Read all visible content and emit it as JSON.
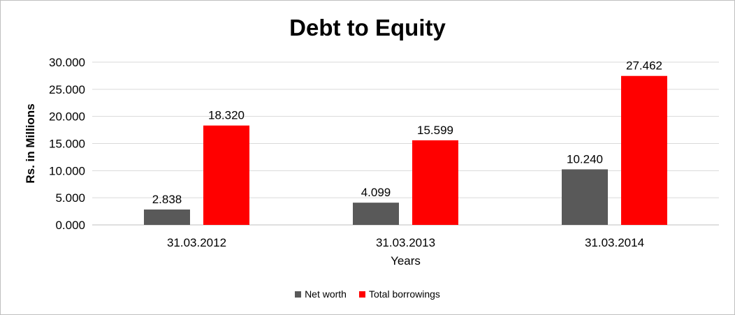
{
  "chart_data": {
    "type": "bar",
    "title": "Debt to Equity",
    "xlabel": "Years",
    "ylabel": "Rs. in Millions",
    "categories": [
      "31.03.2012",
      "31.03.2013",
      "31.03.2014"
    ],
    "series": [
      {
        "name": "Net worth",
        "color": "#595959",
        "values": [
          2.838,
          4.099,
          10.24
        ],
        "labels": [
          "2.838",
          "4.099",
          "10.240"
        ]
      },
      {
        "name": "Total borrowings",
        "color": "#ff0000",
        "values": [
          18.32,
          15.599,
          27.462
        ],
        "labels": [
          "18.320",
          "15.599",
          "27.462"
        ]
      }
    ],
    "ylim": [
      0,
      30
    ],
    "yticks": [
      0,
      5,
      10,
      15,
      20,
      25,
      30
    ],
    "ytick_labels": [
      "0.000",
      "5.000",
      "10.000",
      "15.000",
      "20.000",
      "25.000",
      "30.000"
    ],
    "grid": true,
    "legend_position": "bottom"
  }
}
